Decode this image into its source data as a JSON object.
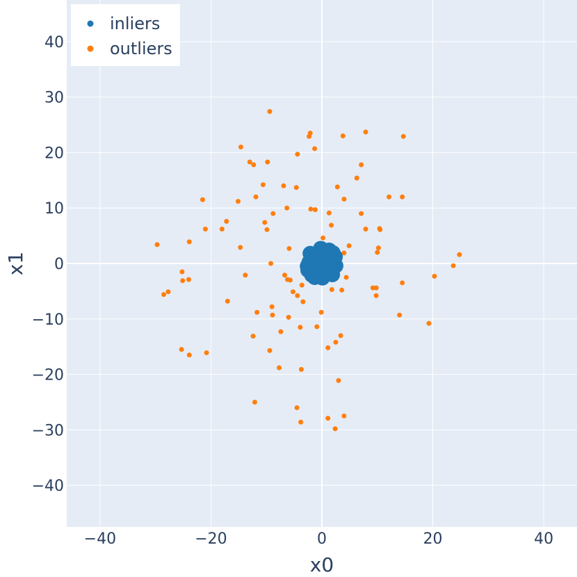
{
  "chart_data": {
    "type": "scatter",
    "xlabel": "x0",
    "ylabel": "x1",
    "xlim": [
      -46,
      46
    ],
    "ylim": [
      -47.5,
      47.5
    ],
    "xticks": [
      -40,
      -20,
      0,
      20,
      40
    ],
    "yticks": [
      -40,
      -30,
      -20,
      -10,
      0,
      10,
      20,
      30,
      40
    ],
    "xtick_labels": [
      "−40",
      "−20",
      "0",
      "20",
      "40"
    ],
    "ytick_labels": [
      "−40",
      "−30",
      "−20",
      "−10",
      "0",
      "10",
      "20",
      "30",
      "40"
    ],
    "grid": true,
    "legend_position": "top-left",
    "colors": {
      "inliers": "#1f77b4",
      "outliers": "#ff7f0e",
      "background": "#e5ecf6",
      "grid": "#ffffff",
      "text": "#2a3f5f"
    },
    "series": [
      {
        "name": "inliers",
        "color": "#1f77b4",
        "points": [
          [
            0.0,
            0.0
          ],
          [
            0.5,
            0.3
          ],
          [
            -0.5,
            0.4
          ],
          [
            1.0,
            -0.2
          ],
          [
            -1.0,
            0.1
          ],
          [
            0.2,
            1.0
          ],
          [
            -0.3,
            -1.1
          ],
          [
            1.5,
            0.8
          ],
          [
            -1.4,
            -0.9
          ],
          [
            0.9,
            1.6
          ],
          [
            -1.2,
            1.7
          ],
          [
            1.8,
            -1.3
          ],
          [
            -1.9,
            -1.4
          ],
          [
            2.2,
            0.5
          ],
          [
            -2.3,
            0.2
          ],
          [
            0.4,
            2.3
          ],
          [
            -0.6,
            -2.2
          ],
          [
            2.0,
            1.9
          ],
          [
            -2.1,
            1.8
          ],
          [
            1.9,
            -2.0
          ],
          [
            -1.8,
            -2.1
          ],
          [
            2.5,
            -0.4
          ],
          [
            -2.6,
            -0.5
          ],
          [
            0.1,
            -2.6
          ],
          [
            -0.2,
            2.7
          ],
          [
            1.3,
            2.4
          ],
          [
            -1.3,
            -2.5
          ],
          [
            2.4,
            1.2
          ],
          [
            -2.5,
            -1.2
          ],
          [
            0.7,
            -0.6
          ],
          [
            -0.8,
            -0.5
          ],
          [
            1.2,
            0.1
          ],
          [
            -1.6,
            0.6
          ],
          [
            0.3,
            -1.8
          ],
          [
            1.6,
            -0.9
          ],
          [
            -0.4,
            1.5
          ]
        ]
      },
      {
        "name": "outliers",
        "color": "#ff7f0e",
        "points": [
          [
            -9.4,
            27.4
          ],
          [
            -2.1,
            23.5
          ],
          [
            -2.3,
            22.9
          ],
          [
            3.8,
            23.0
          ],
          [
            7.9,
            23.7
          ],
          [
            14.7,
            22.9
          ],
          [
            -14.6,
            21.0
          ],
          [
            -1.3,
            20.7
          ],
          [
            -4.4,
            19.7
          ],
          [
            -13.0,
            18.3
          ],
          [
            -12.3,
            17.8
          ],
          [
            -9.8,
            18.3
          ],
          [
            7.1,
            17.8
          ],
          [
            6.3,
            15.4
          ],
          [
            -10.6,
            14.2
          ],
          [
            -6.9,
            14.0
          ],
          [
            -4.6,
            13.7
          ],
          [
            2.8,
            13.8
          ],
          [
            -11.9,
            12.0
          ],
          [
            -15.1,
            11.2
          ],
          [
            4.0,
            11.6
          ],
          [
            12.1,
            12.0
          ],
          [
            14.5,
            12.0
          ],
          [
            -21.5,
            11.5
          ],
          [
            -6.3,
            10.0
          ],
          [
            -2.0,
            9.8
          ],
          [
            -1.2,
            9.7
          ],
          [
            1.3,
            9.1
          ],
          [
            -8.8,
            9.0
          ],
          [
            7.1,
            9.0
          ],
          [
            -17.2,
            7.6
          ],
          [
            -10.3,
            7.4
          ],
          [
            1.7,
            6.9
          ],
          [
            -21.0,
            6.2
          ],
          [
            -18.0,
            6.2
          ],
          [
            -9.9,
            6.1
          ],
          [
            7.9,
            6.2
          ],
          [
            10.4,
            6.3
          ],
          [
            10.5,
            6.1
          ],
          [
            0.2,
            4.6
          ],
          [
            -23.9,
            3.9
          ],
          [
            -29.7,
            3.4
          ],
          [
            -14.7,
            2.9
          ],
          [
            -5.9,
            2.7
          ],
          [
            4.9,
            3.2
          ],
          [
            10.2,
            2.8
          ],
          [
            10.0,
            2.0
          ],
          [
            4.0,
            1.9
          ],
          [
            24.8,
            1.6
          ],
          [
            -9.2,
            0.0
          ],
          [
            23.7,
            -0.4
          ],
          [
            -25.2,
            -1.5
          ],
          [
            -13.8,
            -2.1
          ],
          [
            -6.7,
            -2.1
          ],
          [
            -6.2,
            -2.9
          ],
          [
            -5.7,
            -3.0
          ],
          [
            4.4,
            -2.5
          ],
          [
            20.3,
            -2.3
          ],
          [
            -24.0,
            -2.9
          ],
          [
            -25.1,
            -3.1
          ],
          [
            -3.6,
            -3.9
          ],
          [
            14.5,
            -3.5
          ],
          [
            9.2,
            -4.4
          ],
          [
            9.8,
            -4.4
          ],
          [
            -5.2,
            -5.1
          ],
          [
            1.8,
            -4.7
          ],
          [
            3.6,
            -4.8
          ],
          [
            -27.7,
            -5.1
          ],
          [
            -28.5,
            -5.6
          ],
          [
            9.8,
            -5.8
          ],
          [
            -4.4,
            -5.8
          ],
          [
            -3.4,
            -6.9
          ],
          [
            -17.0,
            -6.8
          ],
          [
            -9.0,
            -7.8
          ],
          [
            -11.7,
            -8.8
          ],
          [
            -8.9,
            -9.3
          ],
          [
            -0.1,
            -8.8
          ],
          [
            14.0,
            -9.3
          ],
          [
            -6.0,
            -9.7
          ],
          [
            19.3,
            -10.8
          ],
          [
            -3.9,
            -11.5
          ],
          [
            -0.9,
            -11.4
          ],
          [
            -7.4,
            -12.3
          ],
          [
            -12.4,
            -13.1
          ],
          [
            3.4,
            -13.0
          ],
          [
            2.5,
            -14.2
          ],
          [
            1.1,
            -15.2
          ],
          [
            -25.3,
            -15.5
          ],
          [
            -9.4,
            -15.7
          ],
          [
            -23.9,
            -16.5
          ],
          [
            -20.8,
            -16.1
          ],
          [
            -7.7,
            -18.8
          ],
          [
            -3.7,
            -19.1
          ],
          [
            3.0,
            -21.1
          ],
          [
            -12.1,
            -25.0
          ],
          [
            -4.5,
            -26.0
          ],
          [
            4.0,
            -27.5
          ],
          [
            1.1,
            -27.9
          ],
          [
            -3.8,
            -28.6
          ],
          [
            2.4,
            -29.8
          ]
        ]
      }
    ]
  }
}
